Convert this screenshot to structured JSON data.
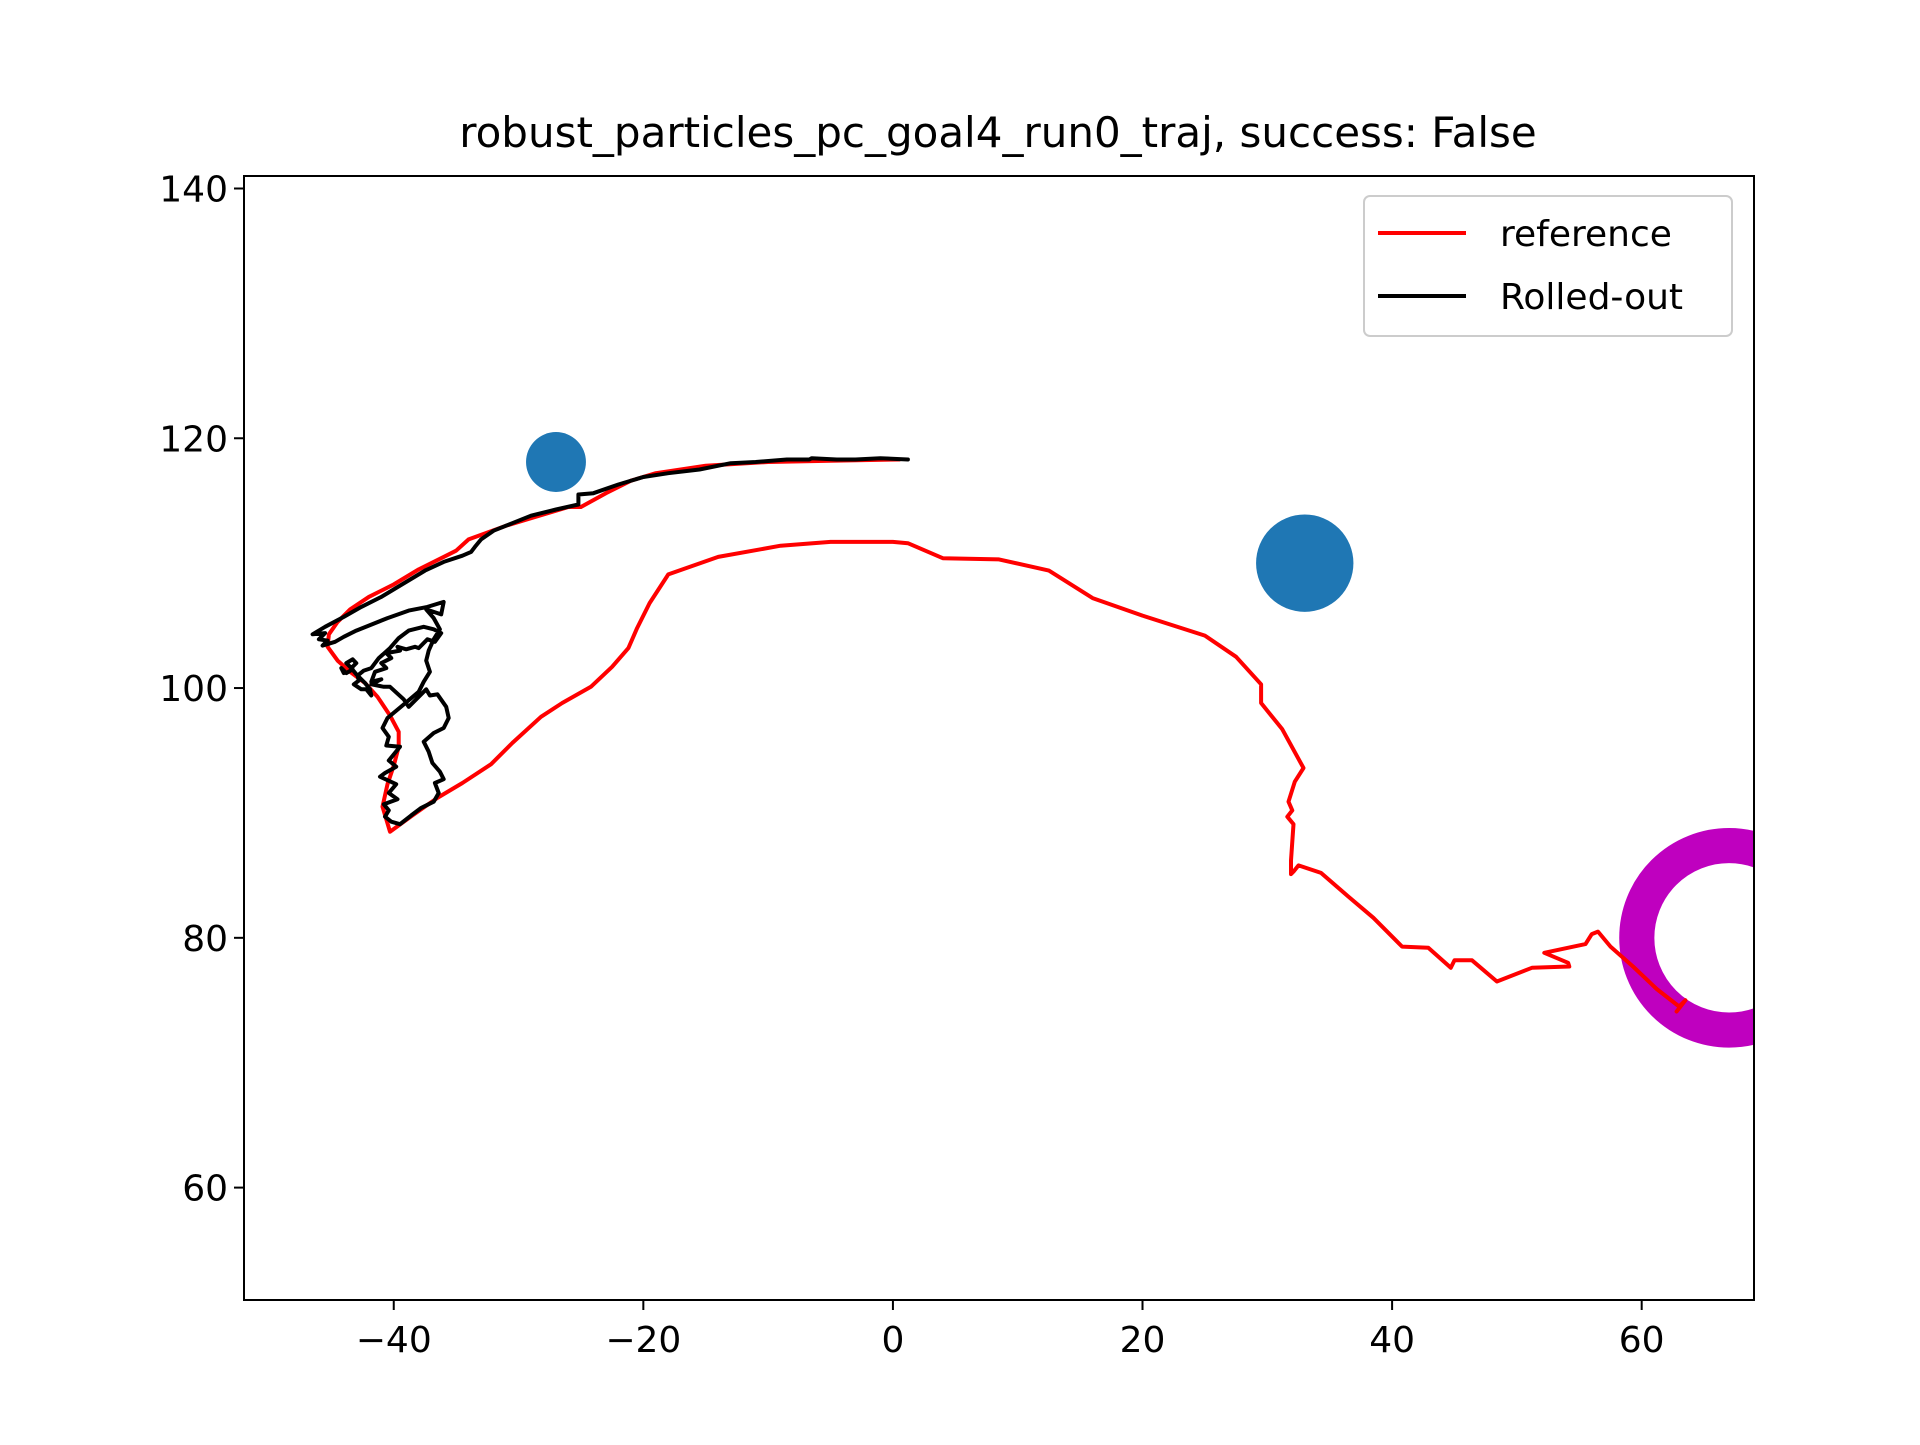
{
  "chart_data": {
    "type": "line",
    "title": "robust_particles_pc_goal4_run0_traj, success: False",
    "xlabel": "",
    "ylabel": "",
    "xlim": [
      -52,
      69
    ],
    "ylim": [
      51,
      141
    ],
    "x_ticks": [
      -40,
      -20,
      0,
      20,
      40,
      60
    ],
    "x_tick_labels": [
      "−40",
      "−20",
      "0",
      "20",
      "40",
      "60"
    ],
    "y_ticks": [
      60,
      80,
      100,
      120,
      140
    ],
    "y_tick_labels": [
      "60",
      "80",
      "100",
      "120",
      "140"
    ],
    "grid": false,
    "legend_position": "upper right",
    "series": [
      {
        "name": "reference",
        "color": "#ff0000",
        "points": [
          [
            0.5,
            118.3
          ],
          [
            -5,
            118.2
          ],
          [
            -10,
            118.1
          ],
          [
            -15,
            117.8
          ],
          [
            -19,
            117.2
          ],
          [
            -21,
            116.6
          ],
          [
            -23,
            115.6
          ],
          [
            -25,
            114.5
          ],
          [
            -26,
            114.5
          ],
          [
            -29,
            113.6
          ],
          [
            -31,
            113.0
          ],
          [
            -34,
            111.9
          ],
          [
            -35,
            111.0
          ],
          [
            -36,
            110.5
          ],
          [
            -38,
            109.5
          ],
          [
            -40,
            108.3
          ],
          [
            -42,
            107.3
          ],
          [
            -43.5,
            106.3
          ],
          [
            -44.5,
            105.3
          ],
          [
            -45.2,
            104.3
          ],
          [
            -45.3,
            103.3
          ],
          [
            -44.5,
            102.2
          ],
          [
            -43.5,
            101.3
          ],
          [
            -42.3,
            100.4
          ],
          [
            -41.3,
            99.3
          ],
          [
            -40.3,
            97.8
          ],
          [
            -39.6,
            96.5
          ],
          [
            -39.6,
            95.3
          ],
          [
            -40.0,
            93.8
          ],
          [
            -40.5,
            92.3
          ],
          [
            -40.9,
            90.5
          ],
          [
            -40.3,
            88.5
          ],
          [
            -38.5,
            89.8
          ],
          [
            -36.5,
            91.2
          ],
          [
            -34.5,
            92.4
          ],
          [
            -32.2,
            93.9
          ],
          [
            -30.5,
            95.6
          ],
          [
            -28.2,
            97.7
          ],
          [
            -26.5,
            98.8
          ],
          [
            -24.2,
            100.1
          ],
          [
            -22.5,
            101.7
          ],
          [
            -21.2,
            103.2
          ],
          [
            -20.5,
            104.8
          ],
          [
            -19.5,
            106.8
          ],
          [
            -18.0,
            109.1
          ],
          [
            -14,
            110.5
          ],
          [
            -9,
            111.4
          ],
          [
            -5,
            111.7
          ],
          [
            0,
            111.7
          ],
          [
            1.2,
            111.6
          ],
          [
            4,
            110.4
          ],
          [
            8.5,
            110.3
          ],
          [
            12.5,
            109.4
          ],
          [
            16,
            107.2
          ],
          [
            20,
            105.8
          ],
          [
            25,
            104.2
          ],
          [
            27.5,
            102.5
          ],
          [
            29.5,
            100.3
          ],
          [
            29.5,
            98.8
          ],
          [
            31.2,
            96.7
          ],
          [
            32.9,
            93.6
          ],
          [
            32.2,
            92.5
          ],
          [
            31.7,
            90.9
          ],
          [
            32.0,
            90.2
          ],
          [
            31.6,
            89.7
          ],
          [
            32.1,
            89.1
          ],
          [
            31.9,
            86.2
          ],
          [
            31.9,
            85.1
          ],
          [
            32.1,
            85.3
          ],
          [
            32.5,
            85.8
          ],
          [
            34.3,
            85.2
          ],
          [
            36.5,
            83.3
          ],
          [
            38.5,
            81.6
          ],
          [
            40.8,
            79.3
          ],
          [
            42.9,
            79.2
          ],
          [
            44.7,
            77.6
          ],
          [
            45.0,
            78.2
          ],
          [
            46.4,
            78.2
          ],
          [
            48.4,
            76.5
          ],
          [
            51.2,
            77.6
          ],
          [
            54.2,
            77.7
          ],
          [
            54.1,
            78.0
          ],
          [
            52.2,
            78.8
          ],
          [
            55.5,
            79.5
          ],
          [
            56.0,
            80.3
          ],
          [
            56.5,
            80.5
          ],
          [
            57.5,
            79.3
          ],
          [
            59.3,
            77.7
          ],
          [
            61.2,
            75.9
          ],
          [
            63.0,
            74.5
          ],
          [
            63.5,
            75.0
          ],
          [
            62.8,
            74.1
          ]
        ]
      },
      {
        "name": "Rolled-out",
        "color": "#000000",
        "points": [
          [
            1.2,
            118.3
          ],
          [
            -1,
            118.4
          ],
          [
            -3,
            118.3
          ],
          [
            -4.5,
            118.3
          ],
          [
            -6.5,
            118.4
          ],
          [
            -6.7,
            118.3
          ],
          [
            -8.5,
            118.3
          ],
          [
            -11,
            118.1
          ],
          [
            -13,
            118.0
          ],
          [
            -15.5,
            117.5
          ],
          [
            -18,
            117.2
          ],
          [
            -20,
            116.9
          ],
          [
            -22,
            116.3
          ],
          [
            -24,
            115.6
          ],
          [
            -25.2,
            115.5
          ],
          [
            -25.2,
            114.7
          ],
          [
            -27,
            114.3
          ],
          [
            -29,
            113.8
          ],
          [
            -30.5,
            113.2
          ],
          [
            -32,
            112.6
          ],
          [
            -33,
            111.9
          ],
          [
            -33.5,
            111.3
          ],
          [
            -33.8,
            110.9
          ],
          [
            -34.5,
            110.6
          ],
          [
            -36,
            110.1
          ],
          [
            -37.5,
            109.4
          ],
          [
            -39.5,
            108.2
          ],
          [
            -41,
            107.3
          ],
          [
            -42.6,
            106.5
          ],
          [
            -44,
            105.7
          ],
          [
            -45.5,
            104.9
          ],
          [
            -46.5,
            104.3
          ],
          [
            -45.5,
            104.4
          ],
          [
            -46,
            103.9
          ],
          [
            -45.3,
            103.8
          ],
          [
            -45.7,
            103.4
          ],
          [
            -44.7,
            103.7
          ],
          [
            -44.0,
            104.1
          ],
          [
            -43.0,
            104.6
          ],
          [
            -42.0,
            105.0
          ],
          [
            -40.5,
            105.6
          ],
          [
            -38.8,
            106.2
          ],
          [
            -37.3,
            106.5
          ],
          [
            -36.0,
            106.9
          ],
          [
            -36.2,
            105.9
          ],
          [
            -37.4,
            106.3
          ],
          [
            -36.8,
            105.6
          ],
          [
            -36.3,
            104.7
          ],
          [
            -36.8,
            103.9
          ],
          [
            -37.2,
            103.0
          ],
          [
            -37.4,
            102.2
          ],
          [
            -37.1,
            101.3
          ],
          [
            -37.6,
            100.5
          ],
          [
            -38.0,
            99.7
          ],
          [
            -39.3,
            98.6
          ],
          [
            -40.5,
            97.6
          ],
          [
            -40.9,
            96.8
          ],
          [
            -40.4,
            96.1
          ],
          [
            -40.6,
            95.4
          ],
          [
            -39.5,
            95.3
          ],
          [
            -40.4,
            94.2
          ],
          [
            -39.8,
            93.7
          ],
          [
            -40.7,
            93.2
          ],
          [
            -41.1,
            92.9
          ],
          [
            -39.8,
            92.3
          ],
          [
            -40.4,
            91.6
          ],
          [
            -39.7,
            91.1
          ],
          [
            -40.8,
            90.7
          ],
          [
            -40.4,
            90.2
          ],
          [
            -40.7,
            89.7
          ],
          [
            -40.2,
            89.3
          ],
          [
            -39.5,
            89.1
          ],
          [
            -38.6,
            89.8
          ],
          [
            -37.8,
            90.4
          ],
          [
            -36.8,
            90.9
          ],
          [
            -36.4,
            91.6
          ],
          [
            -36.7,
            92.4
          ],
          [
            -36.0,
            92.7
          ],
          [
            -36.3,
            93.3
          ],
          [
            -36.9,
            94.0
          ],
          [
            -37.2,
            94.9
          ],
          [
            -37.6,
            95.7
          ],
          [
            -36.8,
            96.4
          ],
          [
            -36.0,
            96.8
          ],
          [
            -35.6,
            97.6
          ],
          [
            -35.8,
            98.5
          ],
          [
            -36.5,
            99.5
          ],
          [
            -37.1,
            99.4
          ],
          [
            -37.4,
            99.9
          ],
          [
            -38.8,
            98.5
          ],
          [
            -39.2,
            99.1
          ],
          [
            -40.3,
            100.1
          ],
          [
            -40.8,
            100.1
          ],
          [
            -41.8,
            100.3
          ],
          [
            -41.0,
            100.7
          ],
          [
            -41.8,
            100.5
          ],
          [
            -41.5,
            101.3
          ],
          [
            -40.6,
            101.6
          ],
          [
            -41.0,
            102.0
          ],
          [
            -40.2,
            102.4
          ],
          [
            -40.6,
            102.8
          ],
          [
            -39.5,
            103.0
          ],
          [
            -39.7,
            103.3
          ],
          [
            -39.0,
            103.1
          ],
          [
            -38.3,
            103.3
          ],
          [
            -38.0,
            103.2
          ],
          [
            -37.3,
            103.9
          ],
          [
            -36.7,
            103.7
          ],
          [
            -36.2,
            104.4
          ],
          [
            -36.8,
            104.7
          ],
          [
            -37.6,
            104.9
          ],
          [
            -38.8,
            104.6
          ],
          [
            -39.6,
            104.0
          ],
          [
            -40.3,
            103.2
          ],
          [
            -41.2,
            102.4
          ],
          [
            -41.8,
            101.6
          ],
          [
            -42.4,
            101.4
          ],
          [
            -42.9,
            101.0
          ],
          [
            -42.8,
            100.6
          ],
          [
            -43.2,
            100.3
          ],
          [
            -42.6,
            99.9
          ],
          [
            -42.2,
            99.9
          ],
          [
            -41.8,
            99.4
          ],
          [
            -41.9,
            99.9
          ],
          [
            -42.3,
            100.4
          ],
          [
            -43.0,
            101.1
          ],
          [
            -43.4,
            101.6
          ],
          [
            -43.0,
            102.0
          ],
          [
            -43.3,
            102.3
          ],
          [
            -43.8,
            102.0
          ],
          [
            -43.3,
            101.5
          ],
          [
            -43.8,
            101.2
          ],
          [
            -44.2,
            101.6
          ],
          [
            -44.0,
            101.2
          ]
        ]
      }
    ],
    "obstacles": [
      {
        "x": -27.0,
        "y": 118.1,
        "r": 2.4,
        "color": "#1f77b4"
      },
      {
        "x": 33.0,
        "y": 110.0,
        "r": 3.9,
        "color": "#1f77b4"
      }
    ],
    "goal": {
      "x": 67.0,
      "y": 80.0,
      "r": 8.8,
      "color": "#bf00bf"
    }
  }
}
